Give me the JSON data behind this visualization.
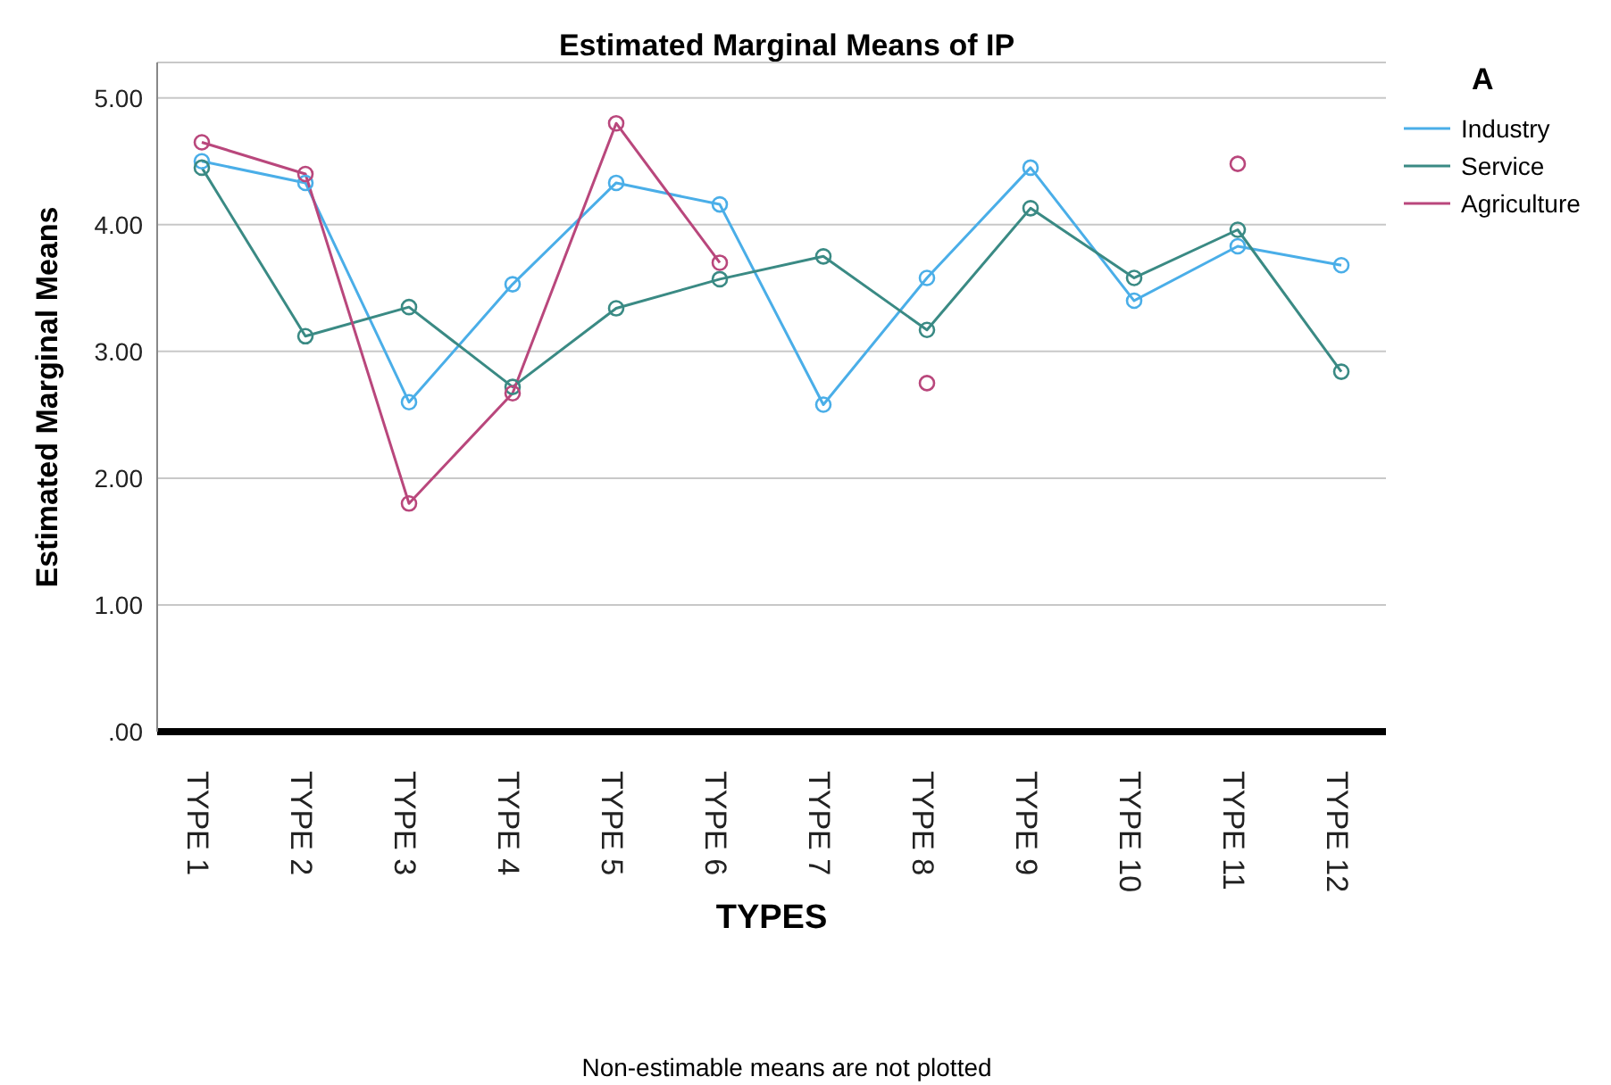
{
  "chart_data": {
    "type": "line",
    "title": "Estimated Marginal Means of IP",
    "xlabel": "TYPES",
    "ylabel": "Estimated Marginal Means",
    "legend_title": "A",
    "categories": [
      "TYPE 1",
      "TYPE 2",
      "TYPE 3",
      "TYPE 4",
      "TYPE 5",
      "TYPE 6",
      "TYPE 7",
      "TYPE 8",
      "TYPE 9",
      "TYPE 10",
      "TYPE 11",
      "TYPE 12"
    ],
    "series": [
      {
        "name": "Industry",
        "color": "#4aaee8",
        "values": [
          4.5,
          4.33,
          2.6,
          3.53,
          4.33,
          4.16,
          2.58,
          3.58,
          4.45,
          3.4,
          3.83,
          3.68
        ]
      },
      {
        "name": "Service",
        "color": "#3a8a84",
        "values": [
          4.45,
          3.12,
          3.35,
          2.72,
          3.34,
          3.57,
          3.75,
          3.17,
          4.13,
          3.58,
          3.96,
          2.84
        ]
      },
      {
        "name": "Agriculture",
        "color": "#b9477c",
        "values": [
          4.65,
          4.4,
          1.8,
          2.67,
          4.8,
          3.7,
          null,
          2.75,
          null,
          null,
          4.48,
          null
        ]
      }
    ],
    "ylim": [
      0,
      5.28
    ],
    "yticks": [
      {
        "value": 0,
        "label": ".00"
      },
      {
        "value": 1,
        "label": "1.00"
      },
      {
        "value": 2,
        "label": "2.00"
      },
      {
        "value": 3,
        "label": "3.00"
      },
      {
        "value": 4,
        "label": "4.00"
      },
      {
        "value": 5,
        "label": "5.00"
      }
    ],
    "grid": "y",
    "legend": "top right",
    "marker": "circle",
    "line_style": "solid",
    "annotations": [
      "Non-estimable means are not plotted"
    ]
  }
}
